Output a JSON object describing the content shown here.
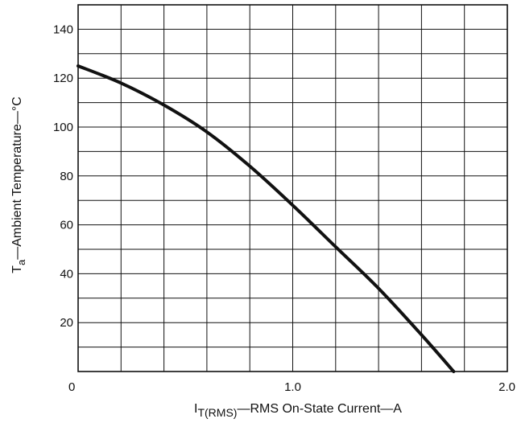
{
  "chart_data": {
    "type": "line",
    "x_axis": {
      "label_main": "I",
      "label_sub": "T(RMS)",
      "label_rest": "—RMS On-State Current—A",
      "range": [
        0,
        2.0
      ],
      "tick_values": [
        0,
        1.0,
        2.0
      ],
      "tick_labels": [
        "0",
        "1.0",
        "2.0"
      ],
      "gridlines_every": 0.2
    },
    "y_axis": {
      "label_main": "T",
      "label_sub": "a",
      "label_rest": "—Ambient Temperature—°C",
      "range": [
        0,
        150
      ],
      "tick_values": [
        20,
        40,
        60,
        80,
        100,
        120,
        140
      ],
      "tick_labels": [
        "20",
        "40",
        "60",
        "80",
        "100",
        "120",
        "140"
      ],
      "gridlines_every": 10
    },
    "grid": true,
    "series": [
      {
        "x": [
          0,
          0.2,
          0.4,
          0.6,
          0.8,
          1.0,
          1.2,
          1.4,
          1.6,
          1.75
        ],
        "y": [
          125,
          118,
          109,
          98,
          84,
          68,
          51,
          34,
          15,
          0
        ]
      }
    ],
    "colors": {
      "line": "#111111",
      "grid": "#111111"
    }
  }
}
